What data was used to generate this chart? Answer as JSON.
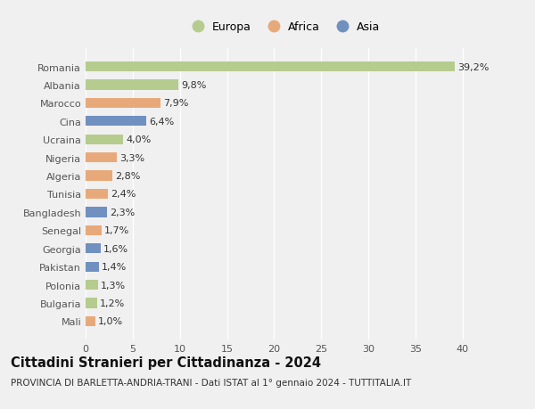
{
  "countries": [
    "Romania",
    "Albania",
    "Marocco",
    "Cina",
    "Ucraina",
    "Nigeria",
    "Algeria",
    "Tunisia",
    "Bangladesh",
    "Senegal",
    "Georgia",
    "Pakistan",
    "Polonia",
    "Bulgaria",
    "Mali"
  ],
  "values": [
    39.2,
    9.8,
    7.9,
    6.4,
    4.0,
    3.3,
    2.8,
    2.4,
    2.3,
    1.7,
    1.6,
    1.4,
    1.3,
    1.2,
    1.0
  ],
  "labels": [
    "39,2%",
    "9,8%",
    "7,9%",
    "6,4%",
    "4,0%",
    "3,3%",
    "2,8%",
    "2,4%",
    "2,3%",
    "1,7%",
    "1,6%",
    "1,4%",
    "1,3%",
    "1,2%",
    "1,0%"
  ],
  "continents": [
    "Europa",
    "Europa",
    "Africa",
    "Asia",
    "Europa",
    "Africa",
    "Africa",
    "Africa",
    "Asia",
    "Africa",
    "Asia",
    "Asia",
    "Europa",
    "Europa",
    "Africa"
  ],
  "colors": {
    "Europa": "#b5cc8e",
    "Africa": "#e8a97a",
    "Asia": "#7090c0"
  },
  "xlim": [
    0,
    42
  ],
  "xticks": [
    0,
    5,
    10,
    15,
    20,
    25,
    30,
    35,
    40
  ],
  "title": "Cittadini Stranieri per Cittadinanza - 2024",
  "subtitle": "PROVINCIA DI BARLETTA-ANDRIA-TRANI - Dati ISTAT al 1° gennaio 2024 - TUTTITALIA.IT",
  "bg_color": "#f0f0f0",
  "plot_bg_color": "#f0f0f0",
  "bar_height": 0.55,
  "grid_color": "#ffffff",
  "label_fontsize": 8,
  "title_fontsize": 10.5,
  "subtitle_fontsize": 7.5,
  "tick_fontsize": 8
}
